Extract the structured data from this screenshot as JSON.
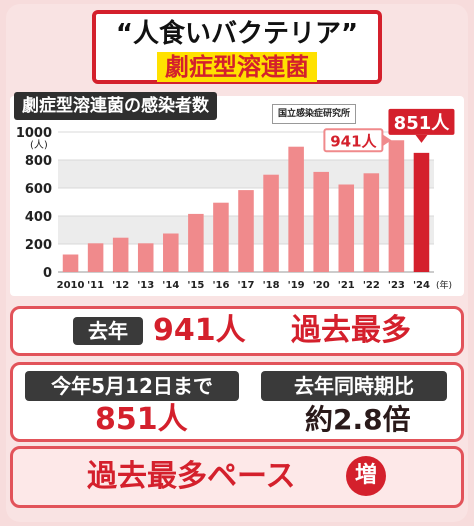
{
  "header": {
    "title_line1": "“人食いバクテリア”",
    "title_line2": "劇症型溶連菌"
  },
  "chart_title": "劇症型溶連菌の感染者数",
  "source": "国立感染症研究所",
  "chart_data": {
    "type": "bar",
    "title": "劇症型溶連菌の感染者数",
    "ylabel": "(人)",
    "xlabel": "(年)",
    "categories": [
      "2010",
      "'11",
      "'12",
      "'13",
      "'14",
      "'15",
      "'16",
      "'17",
      "'18",
      "'19",
      "'20",
      "'21",
      "'22",
      "'23",
      "'24"
    ],
    "values": [
      125,
      205,
      245,
      205,
      275,
      415,
      495,
      585,
      695,
      895,
      715,
      625,
      705,
      941,
      851
    ],
    "ylim": [
      0,
      1000
    ],
    "yticks": [
      0,
      200,
      400,
      600,
      800,
      1000
    ],
    "grid": true,
    "callouts": [
      {
        "label": "941人",
        "index": 13
      },
      {
        "label": "851人",
        "index": 14
      }
    ],
    "colors": {
      "bar": "#f08a8c",
      "highlight": "#d4202c",
      "grid": "#d9d9d9"
    }
  },
  "last_year": {
    "tag": "去年",
    "value": "941人",
    "note": "過去最多"
  },
  "this_year": {
    "tag": "今年5月12日まで",
    "value": "851人"
  },
  "comparison": {
    "tag": "去年同時期比",
    "value": "約2.8倍"
  },
  "pace": {
    "text": "過去最多ペース",
    "badge": "増"
  }
}
